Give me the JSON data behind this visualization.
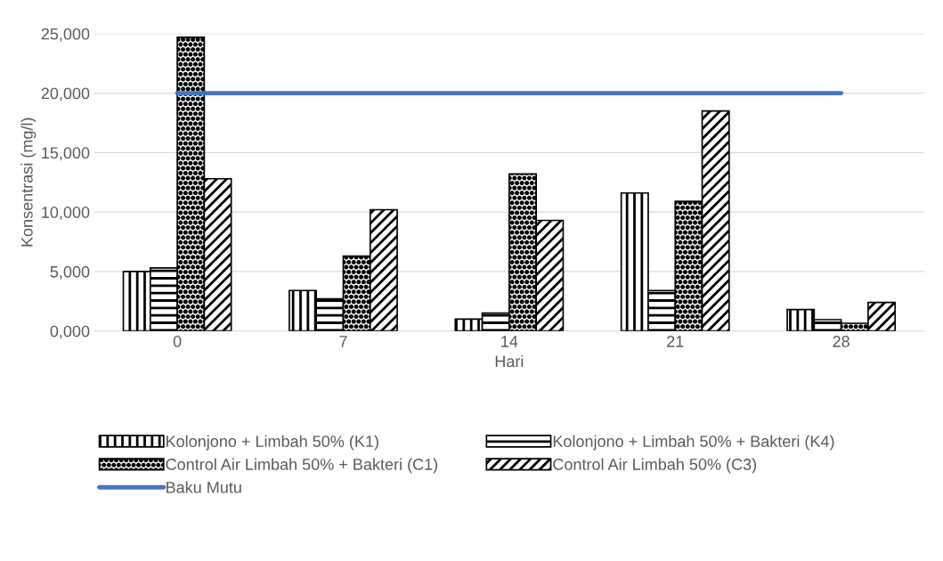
{
  "chart_data": {
    "type": "bar",
    "xlabel": "Hari",
    "ylabel": "Konsentrasi (mg/l)",
    "categories": [
      "0",
      "7",
      "14",
      "21",
      "28"
    ],
    "series": [
      {
        "name": "Kolonjono + Limbah 50% (K1)",
        "color": "#000000",
        "values": [
          5000,
          3400,
          1000,
          11600,
          1800
        ]
      },
      {
        "name": "Kolonjono + Limbah 50% + Bakteri (K4)",
        "color": "#000000",
        "values": [
          5300,
          2700,
          1500,
          3400,
          950
        ]
      },
      {
        "name": "Control Air Limbah 50% + Bakteri (C1)",
        "color": "#000000",
        "values": [
          24700,
          6300,
          13200,
          10900,
          650
        ]
      },
      {
        "name": "Control Air Limbah 50% (C3)",
        "color": "#000000",
        "values": [
          12800,
          10200,
          9300,
          18500,
          2400
        ]
      },
      {
        "name": "Baku Mutu",
        "type": "line",
        "color": "#4472c4",
        "values": [
          20000,
          20000,
          20000,
          20000,
          20000
        ]
      }
    ],
    "ylim": [
      0,
      25000
    ],
    "yticks": [
      {
        "value": 0,
        "label": "0,000"
      },
      {
        "value": 5000,
        "label": "5,000"
      },
      {
        "value": 10000,
        "label": "10,000"
      },
      {
        "value": 15000,
        "label": "15,000"
      },
      {
        "value": 20000,
        "label": "20,000"
      },
      {
        "value": 25000,
        "label": "25,000"
      }
    ],
    "grid": "y",
    "legend": "bottom"
  }
}
